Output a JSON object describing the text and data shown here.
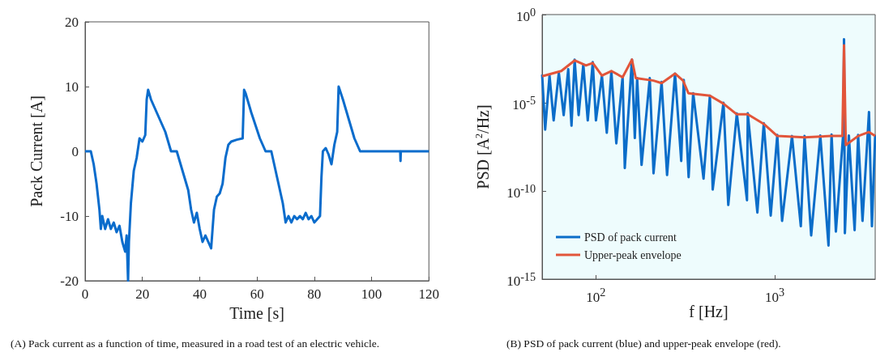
{
  "chart_data": [
    {
      "type": "line",
      "title": "(A) Pack current as a function of time, measured in a road test of an electric vehicle.",
      "xlabel": "Time [s]",
      "ylabel": "Pack Current [A]",
      "color": "#0a6ccc",
      "x": [
        0,
        1,
        2,
        3,
        4,
        5,
        5.5,
        6,
        7,
        8,
        9,
        10,
        11,
        12,
        13,
        14,
        14.5,
        15,
        15.3,
        16,
        17,
        18,
        19,
        20,
        21,
        21.5,
        22,
        23,
        25,
        28,
        30,
        32,
        34,
        36,
        37,
        38,
        39,
        40,
        41,
        42,
        43,
        44,
        44.5,
        45,
        46,
        47,
        48,
        49,
        50,
        51,
        53,
        55,
        55.5,
        56,
        58,
        61,
        63,
        65,
        67,
        69,
        70,
        71,
        72,
        73,
        74,
        75,
        76,
        77,
        78,
        79,
        80,
        81,
        82,
        82.5,
        83,
        84,
        85,
        86,
        87,
        88,
        88.5,
        90,
        92,
        94,
        96,
        97,
        110,
        110.1,
        110.2,
        120
      ],
      "values": [
        0,
        0,
        0,
        -2,
        -5,
        -9,
        -12,
        -10,
        -12,
        -10.5,
        -12,
        -11,
        -12.5,
        -11.5,
        -14,
        -15.5,
        -13,
        -20,
        -14,
        -8,
        -3,
        -1,
        2,
        1.5,
        2.5,
        8,
        9.5,
        8,
        6,
        3,
        0,
        0,
        -3,
        -6,
        -9,
        -11,
        -9.5,
        -12,
        -14,
        -13,
        -14,
        -15,
        -12,
        -9,
        -7,
        -6.5,
        -5,
        -1,
        1,
        1.5,
        1.8,
        2,
        9.5,
        9,
        6,
        2,
        0,
        0,
        -4,
        -8,
        -11,
        -10,
        -11,
        -10,
        -10.5,
        -10,
        -10.5,
        -9.5,
        -10.5,
        -10,
        -11,
        -10.5,
        -10,
        -4,
        0,
        0.5,
        -0.5,
        -2,
        1,
        3,
        10,
        8,
        5,
        2,
        0,
        0,
        0,
        -1.5,
        0,
        0
      ],
      "xlim": [
        0,
        120
      ],
      "xticks": [
        0,
        20,
        40,
        60,
        80,
        100,
        120
      ],
      "ylim": [
        -20,
        20
      ],
      "yticks": [
        -20,
        -10,
        0,
        10,
        20
      ]
    },
    {
      "type": "line",
      "title": "(B) PSD of pack current (blue) and upper-peak envelope (red).",
      "xlabel": "f [Hz]",
      "ylabel": "PSD [A$^{2}$/Hz]",
      "log": "xy",
      "legend": "bottom left",
      "xlim": [
        50,
        3650
      ],
      "xticks": [
        {
          "value": 100,
          "label": "10$^{2}$"
        },
        {
          "value": 1000,
          "label": "10$^{3}$"
        }
      ],
      "ylim": [
        1e-15,
        1
      ],
      "yticks": [
        {
          "value": 1e-15,
          "label": "10$^{-15}$"
        },
        {
          "value": 1e-10,
          "label": "10$^{-10}$"
        },
        {
          "value": 1e-05,
          "label": "10$^{-5}$"
        },
        {
          "value": 1,
          "label": "10$^{0}$"
        }
      ],
      "series": [
        {
          "name": "PSD of pack current",
          "color": "#0b6dc9",
          "x": [
            50,
            52,
            55,
            58,
            62,
            66,
            70,
            73,
            76,
            80,
            85,
            90,
            96,
            100,
            108,
            115,
            122,
            130,
            141,
            145,
            159,
            165,
            170,
            180,
            200,
            210,
            233,
            250,
            277,
            300,
            310,
            330,
            350,
            400,
            434,
            450,
            517,
            550,
            614,
            700,
            707,
            800,
            869,
            950,
            1034,
            1100,
            1250,
            1400,
            1469,
            1600,
            1800,
            2000,
            2081,
            2200,
            2420,
            2443,
            2470,
            2600,
            2800,
            2930,
            3100,
            3370,
            3500,
            3650
          ],
          "values": [
            0.0004,
            3e-07,
            0.00035,
            1e-06,
            0.0005,
            2e-06,
            0.0008,
            5e-07,
            0.0028,
            2e-06,
            0.0015,
            1e-06,
            0.002,
            1e-06,
            0.00035,
            2e-07,
            0.0006,
            5e-08,
            0.0003,
            2e-09,
            0.0028,
            1e-07,
            0.00025,
            3e-09,
            0.00025,
            1e-09,
            0.00015,
            8e-10,
            0.00045,
            5e-09,
            0.0002,
            6e-10,
            3.5e-05,
            5e-10,
            2.5e-05,
            1.2e-10,
            1e-05,
            1.6e-11,
            2.5e-06,
            3e-11,
            2.5e-06,
            6e-12,
            7e-07,
            4e-12,
            1.5e-07,
            2e-12,
            1.3e-07,
            1e-12,
            1.3e-07,
            3e-13,
            1.4e-07,
            8e-14,
            1.6e-07,
            5e-13,
            2e-07,
            0.04,
            4e-13,
            1.4e-07,
            6e-13,
            1.5e-07,
            2e-12,
            3e-06,
            1e-12,
            1.5e-07
          ]
        },
        {
          "name": "Upper-peak envelope",
          "color": "#e2553a",
          "x": [
            50,
            64,
            76,
            88,
            96,
            108,
            122,
            141,
            159,
            167,
            210,
            233,
            277,
            307,
            329,
            434,
            517,
            614,
            707,
            869,
            1034,
            1469,
            2081,
            2392,
            2443,
            2500,
            2930,
            3370,
            3650
          ],
          "values": [
            0.00032,
            0.00063,
            0.0025,
            0.0013,
            0.0018,
            0.00035,
            0.00063,
            0.00028,
            0.0028,
            0.00025,
            0.00018,
            0.00013,
            0.00045,
            0.00018,
            3.5e-05,
            2.5e-05,
            8.9e-06,
            2.2e-06,
            2.2e-06,
            6.3e-07,
            1.3e-07,
            1.1e-07,
            1.3e-07,
            1.3e-07,
            0.018,
            4e-08,
            1.3e-07,
            2.2e-07,
            1.3e-07
          ]
        }
      ]
    }
  ]
}
